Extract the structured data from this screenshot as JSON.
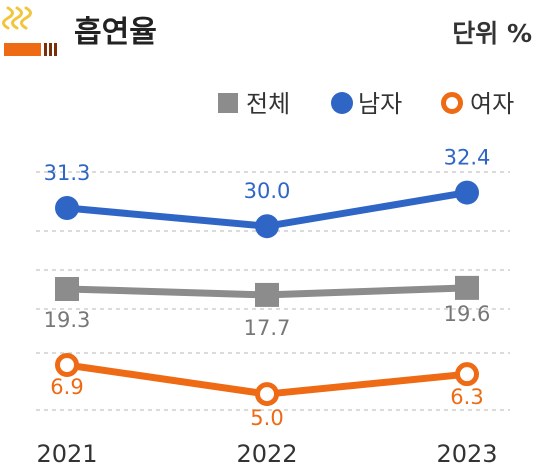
{
  "header": {
    "title": "흡연율",
    "unit": "단위 %",
    "icon": "cigarette-icon"
  },
  "chart_data": {
    "type": "line",
    "x": [
      "2021",
      "2022",
      "2023"
    ],
    "series": [
      {
        "name": "전체",
        "values": [
          19.3,
          17.7,
          19.6
        ],
        "color": "#8c8c8c",
        "marker": "square"
      },
      {
        "name": "남자",
        "values": [
          31.3,
          30.0,
          32.4
        ],
        "color": "#2f66c6",
        "marker": "filled-circle"
      },
      {
        "name": "여자",
        "values": [
          6.9,
          5.0,
          6.3
        ],
        "color": "#ee6a14",
        "marker": "hollow-circle"
      }
    ],
    "legend": "top-right",
    "grid": true,
    "title": "흡연율",
    "unit": "단위 %"
  }
}
